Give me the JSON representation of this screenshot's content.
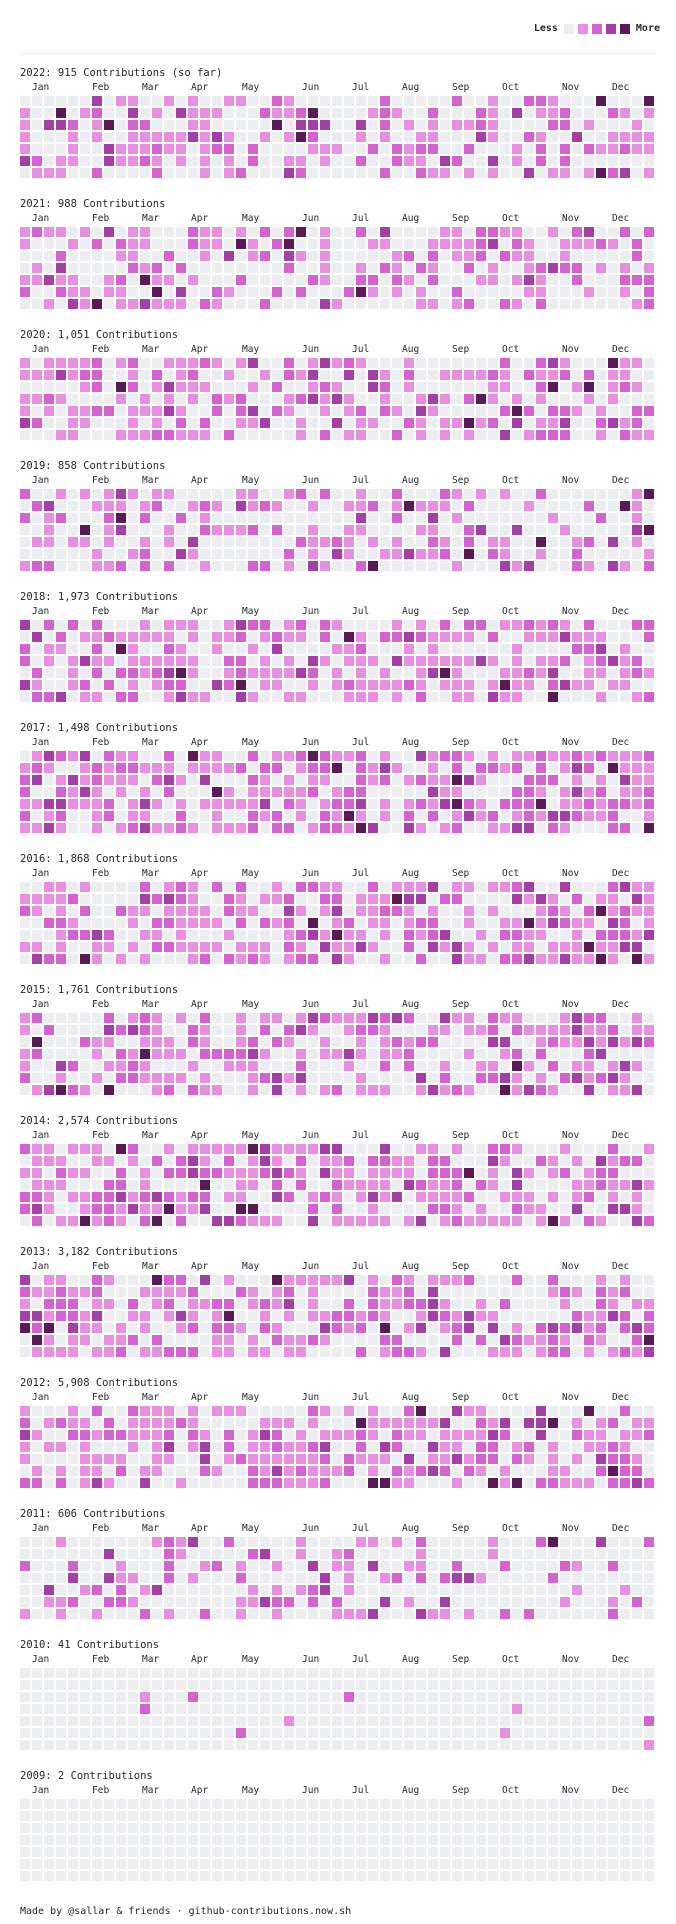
{
  "legend": {
    "less_label": "Less",
    "more_label": "More",
    "colors": [
      "#ebedf0",
      "#e88fe2",
      "#d462d0",
      "#a33fa6",
      "#5a1a55"
    ]
  },
  "footer": {
    "text": "Made by @sallar & friends · github-contributions.now.sh"
  },
  "years": [
    {
      "title": "2022: 915 Contributions (so far)",
      "seed": 2022,
      "fill": 0.45,
      "months": [
        "Jan",
        "Feb",
        "Mar",
        "Apr",
        "May",
        "Jun",
        "Jul",
        "Aug",
        "Sep",
        "Oct",
        "Nov",
        "Dec"
      ]
    },
    {
      "title": "2021: 988 Contributions",
      "seed": 2021,
      "fill": 0.45,
      "months": [
        "Jan",
        "Feb",
        "Mar",
        "Apr",
        "May",
        "Jun",
        "Jul",
        "Aug",
        "Sep",
        "Oct",
        "Nov",
        "Dec"
      ]
    },
    {
      "title": "2020: 1,051 Contributions",
      "seed": 2020,
      "fill": 0.55,
      "months": [
        "Jan",
        "Feb",
        "Mar",
        "Apr",
        "May",
        "Jun",
        "Jul",
        "Aug",
        "Sep",
        "Oct",
        "Nov",
        "Dec"
      ]
    },
    {
      "title": "2019: 858 Contributions",
      "seed": 2019,
      "fill": 0.45,
      "months": [
        "Jan",
        "Feb",
        "Mar",
        "Apr",
        "May",
        "Jun",
        "Jul",
        "Aug",
        "Sep",
        "Oct",
        "Nov",
        "Dec"
      ]
    },
    {
      "title": "2018: 1,973 Contributions",
      "seed": 2018,
      "fill": 0.6,
      "months": [
        "Jan",
        "Feb",
        "Mar",
        "Apr",
        "May",
        "Jun",
        "Jul",
        "Aug",
        "Sep",
        "Oct",
        "Nov",
        "Dec"
      ]
    },
    {
      "title": "2017: 1,498 Contributions",
      "seed": 2017,
      "fill": 0.65,
      "months": [
        "Jan",
        "Feb",
        "Mar",
        "Apr",
        "May",
        "Jun",
        "Jul",
        "Aug",
        "Sep",
        "Oct",
        "Nov",
        "Dec"
      ]
    },
    {
      "title": "2016: 1,868 Contributions",
      "seed": 2016,
      "fill": 0.65,
      "months": [
        "Jan",
        "Feb",
        "Mar",
        "Apr",
        "May",
        "Jun",
        "Jul",
        "Aug",
        "Sep",
        "Oct",
        "Nov",
        "Dec"
      ]
    },
    {
      "title": "2015: 1,761 Contributions",
      "seed": 2015,
      "fill": 0.55,
      "months": [
        "Jan",
        "Feb",
        "Mar",
        "Apr",
        "May",
        "Jun",
        "Jul",
        "Aug",
        "Sep",
        "Oct",
        "Nov",
        "Dec"
      ]
    },
    {
      "title": "2014: 2,574 Contributions",
      "seed": 2014,
      "fill": 0.65,
      "months": [
        "Jan",
        "Feb",
        "Mar",
        "Apr",
        "May",
        "Jun",
        "Jul",
        "Aug",
        "Sep",
        "Oct",
        "Nov",
        "Dec"
      ]
    },
    {
      "title": "2013: 3,182 Contributions",
      "seed": 2013,
      "fill": 0.6,
      "months": [
        "Jan",
        "Feb",
        "Mar",
        "Apr",
        "May",
        "Jun",
        "Jul",
        "Aug",
        "Sep",
        "Oct",
        "Nov",
        "Dec"
      ]
    },
    {
      "title": "2012: 5,908 Contributions",
      "seed": 2012,
      "fill": 0.65,
      "months": [
        "Jan",
        "Feb",
        "Mar",
        "Apr",
        "May",
        "Jun",
        "Jul",
        "Aug",
        "Sep",
        "Oct",
        "Nov",
        "Dec"
      ]
    },
    {
      "title": "2011: 606 Contributions",
      "seed": 2011,
      "fill": 0.3,
      "months": [
        "Jan",
        "Feb",
        "Mar",
        "Apr",
        "May",
        "Jun",
        "Jul",
        "Aug",
        "Sep",
        "Oct",
        "Nov",
        "Dec"
      ]
    },
    {
      "title": "2010: 41 Contributions",
      "seed": 2010,
      "fill": 0.02,
      "months": [
        "Jan",
        "Feb",
        "Mar",
        "Apr",
        "May",
        "Jun",
        "Jul",
        "Aug",
        "Sep",
        "Oct",
        "Nov",
        "Dec"
      ]
    },
    {
      "title": "2009: 2 Contributions",
      "seed": 2009,
      "fill": 0.002,
      "months": [
        "Jan",
        "Feb",
        "Mar",
        "Apr",
        "May",
        "Jun",
        "Jul",
        "Aug",
        "Sep",
        "Oct",
        "Nov",
        "Dec"
      ]
    }
  ]
}
